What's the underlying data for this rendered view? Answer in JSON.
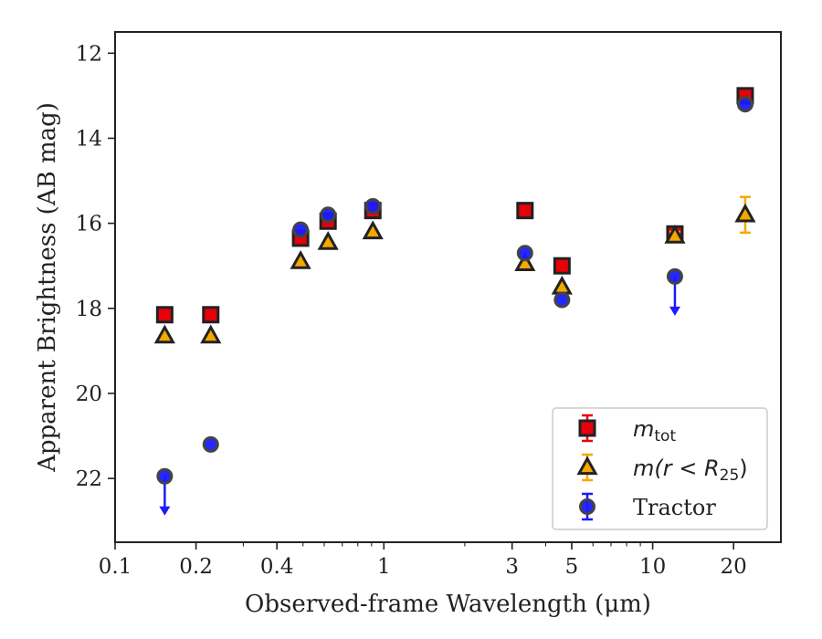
{
  "chart_data": {
    "type": "scatter",
    "xlabel": "Observed-frame Wavelength (μm)",
    "ylabel": "Apparent Brightness (AB mag)",
    "xscale": "log",
    "xlim": [
      0.1,
      30
    ],
    "ylim": [
      23.5,
      11.5
    ],
    "y_inverted": true,
    "x_ticks": [
      0.1,
      0.2,
      0.4,
      1,
      3,
      5,
      10,
      20
    ],
    "x_tick_labels": [
      "0.1",
      "0.2",
      "0.4",
      "1",
      "3",
      "5",
      "10",
      "20"
    ],
    "y_ticks": [
      12,
      14,
      16,
      18,
      20,
      22
    ],
    "y_tick_labels": [
      "12",
      "14",
      "16",
      "18",
      "20",
      "22"
    ],
    "grid": false,
    "legend_position": "lower-right",
    "series": [
      {
        "name": "m_tot",
        "marker": "square",
        "color": "#e8000b",
        "edge_color": "#222222",
        "x": [
          0.153,
          0.227,
          0.49,
          0.62,
          0.91,
          3.35,
          4.6,
          12.1,
          22.1
        ],
        "y": [
          18.15,
          18.15,
          16.35,
          15.95,
          15.7,
          15.7,
          17.0,
          16.25,
          13.0
        ],
        "err": [
          0,
          0,
          0.05,
          0.05,
          0.05,
          0,
          0,
          0.1,
          0.05
        ],
        "upper_limit": [
          false,
          false,
          false,
          false,
          false,
          false,
          false,
          false,
          false
        ]
      },
      {
        "name": "m(r < R25)",
        "marker": "triangle",
        "color": "#f5a800",
        "edge_color": "#222222",
        "x": [
          0.153,
          0.227,
          0.49,
          0.62,
          0.91,
          3.35,
          4.6,
          12.1,
          22.1
        ],
        "y": [
          18.65,
          18.65,
          16.9,
          16.45,
          16.2,
          16.95,
          17.5,
          16.3,
          15.8
        ],
        "err": [
          0,
          0,
          0,
          0,
          0,
          0,
          0,
          0.1,
          0.42
        ],
        "upper_limit": [
          false,
          false,
          false,
          false,
          false,
          false,
          false,
          false,
          false
        ]
      },
      {
        "name": "Tractor",
        "marker": "circle",
        "color": "#1a1aff",
        "edge_color": "#444444",
        "x": [
          0.153,
          0.227,
          0.49,
          0.62,
          0.91,
          3.35,
          4.6,
          12.1,
          22.1
        ],
        "y": [
          21.95,
          21.2,
          16.15,
          15.8,
          15.6,
          16.7,
          17.8,
          17.25,
          13.2
        ],
        "err": [
          0,
          0,
          0,
          0,
          0,
          0,
          0,
          0,
          0
        ],
        "upper_limit": [
          true,
          false,
          false,
          false,
          false,
          false,
          false,
          true,
          false
        ]
      }
    ],
    "legend": [
      {
        "base": "m",
        "sub": "tot",
        "series": 0
      },
      {
        "text": "m(r < R",
        "sub": "25",
        "close": ")",
        "series": 1
      },
      {
        "text": "Tractor",
        "series": 2
      }
    ]
  }
}
